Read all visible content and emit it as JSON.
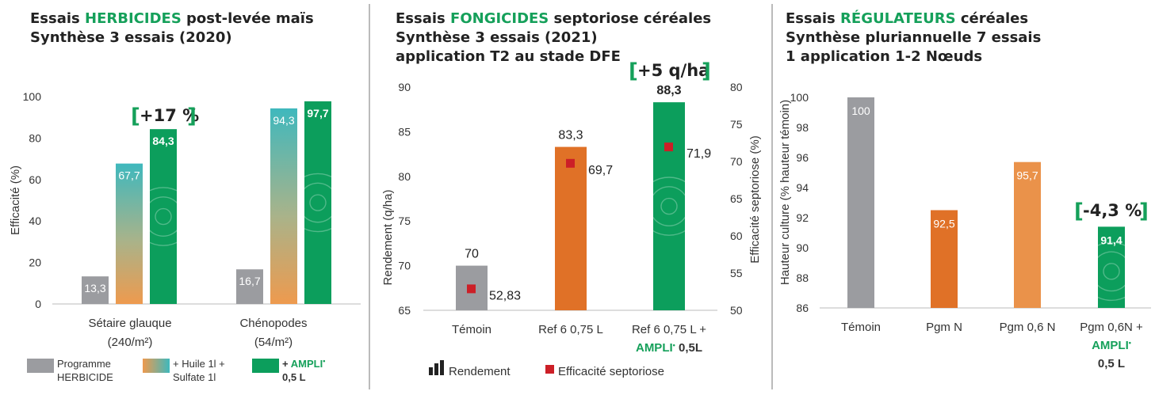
{
  "colors": {
    "grey": "#9b9ca0",
    "orange": "#e07127",
    "orange_light": "#ea924a",
    "teal": "#3fb8bd",
    "green": "#0c9e5c",
    "green_text": "#15a05a",
    "marker": "#cc1f27"
  },
  "panel1": {
    "title_pre": "Essais ",
    "title_hl": "HERBICIDES",
    "title_post": " post-levée maïs",
    "title_line2": "Synthèse 3 essais (2020)",
    "ylabel": "Efficacité (%)",
    "annotation": "+17 %",
    "categories": [
      {
        "line1": "Sétaire glauque",
        "line2": "(240/m²)"
      },
      {
        "line1": "Chénopodes",
        "line2": "(54/m²)"
      }
    ],
    "legend": [
      {
        "line1": "Programme",
        "line2": "HERBICIDE"
      },
      {
        "line1": "+ Huile 1l +",
        "line2": "Sulfate 1l"
      },
      {
        "line1_pre": "+ ",
        "line1_brand": "AMPLI",
        "line1_mark": "•",
        "line2": "0,5 L"
      }
    ]
  },
  "panel2": {
    "title_pre": "Essais ",
    "title_hl": "FONGICIDES",
    "title_post": " septoriose céréales",
    "title_line2": "Synthèse 3 essais (2021)",
    "title_line3": "application T2 au stade DFE",
    "ylabel_left": "Rendement (q/ha)",
    "ylabel_right": "Efficacité septoriose (%)",
    "annotation": "+5 q/ha",
    "categories": [
      {
        "line1": "Témoin",
        "line2_brand": "",
        "line2_rest": ""
      },
      {
        "line1": "Ref 6 0,75 L",
        "line2_brand": "",
        "line2_rest": ""
      },
      {
        "line1": "Ref 6 0,75 L +",
        "line2_brand": "AMPLI",
        "line2_mark": "•",
        "line2_rest": " 0,5L"
      }
    ],
    "legend": {
      "rendement": "Rendement",
      "efficacite": "Efficacité septoriose"
    }
  },
  "panel3": {
    "title_pre": "Essais ",
    "title_hl": "RÉGULATEURS",
    "title_post": " céréales",
    "title_line2": "Synthèse pluriannuelle 7 essais",
    "title_line3": "1 application 1-2 Nœuds",
    "ylabel": "Hauteur culture (% hauteur témoin)",
    "annotation": "-4,3 %",
    "categories": [
      {
        "line1": "Témoin"
      },
      {
        "line1": "Pgm N"
      },
      {
        "line1": "Pgm 0,6 N"
      },
      {
        "line1": "Pgm 0,6N +",
        "line2_brand": "AMPLI",
        "line2_mark": "•",
        "line3": "0,5 L"
      }
    ]
  },
  "chart_data": [
    {
      "type": "bar",
      "title": "Essais HERBICIDES post-levée maïs - Synthèse 3 essais (2020)",
      "ylabel": "Efficacité (%)",
      "ylim": [
        0,
        100
      ],
      "yticks": [
        0,
        20,
        40,
        60,
        80,
        100
      ],
      "categories": [
        "Sétaire glauque (240/m²)",
        "Chénopodes (54/m²)"
      ],
      "series": [
        {
          "name": "Programme HERBICIDE",
          "values": [
            13.3,
            16.7
          ],
          "labels": [
            "13,3",
            "16,7"
          ]
        },
        {
          "name": "+ Huile 1l + Sulfate 1l",
          "values": [
            67.7,
            94.3
          ],
          "labels": [
            "67,7",
            "94,3"
          ]
        },
        {
          "name": "+ AMPLI 0,5 L",
          "values": [
            84.3,
            97.7
          ],
          "labels": [
            "84,3",
            "97,7"
          ]
        }
      ],
      "annotation": "+17 %"
    },
    {
      "type": "bar",
      "title": "Essais FONGICIDES septoriose céréales - Synthèse 3 essais (2021) application T2 au stade DFE",
      "ylabel": "Rendement (q/ha)",
      "ylim": [
        65,
        90
      ],
      "yticks": [
        65,
        70,
        75,
        80,
        85,
        90
      ],
      "y2label": "Efficacité septoriose (%)",
      "y2lim": [
        50,
        80
      ],
      "y2ticks": [
        50,
        55,
        60,
        65,
        70,
        75,
        80
      ],
      "categories": [
        "Témoin",
        "Ref 6 0,75 L",
        "Ref 6 0,75 L + AMPLI 0,5L"
      ],
      "series": [
        {
          "name": "Rendement",
          "values": [
            70,
            83.3,
            88.3
          ],
          "labels": [
            "70",
            "83,3",
            "88,3"
          ]
        },
        {
          "name": "Efficacité septoriose",
          "axis": "y2",
          "values": [
            52.83,
            69.7,
            71.9
          ],
          "labels": [
            "52,83",
            "69,7",
            "71,9"
          ]
        }
      ],
      "annotation": "+5 q/ha"
    },
    {
      "type": "bar",
      "title": "Essais RÉGULATEURS céréales - Synthèse pluriannuelle 7 essais - 1 application 1-2 Nœuds",
      "ylabel": "Hauteur culture (% hauteur témoin)",
      "ylim": [
        86,
        100
      ],
      "yticks": [
        86,
        88,
        90,
        92,
        94,
        96,
        98,
        100
      ],
      "categories": [
        "Témoin",
        "Pgm N",
        "Pgm 0,6 N",
        "Pgm 0,6N + AMPLI 0,5 L"
      ],
      "values": [
        100,
        92.5,
        95.7,
        91.4
      ],
      "labels": [
        "100",
        "92,5",
        "95,7",
        "91,4"
      ],
      "annotation": "-4,3 %"
    }
  ]
}
